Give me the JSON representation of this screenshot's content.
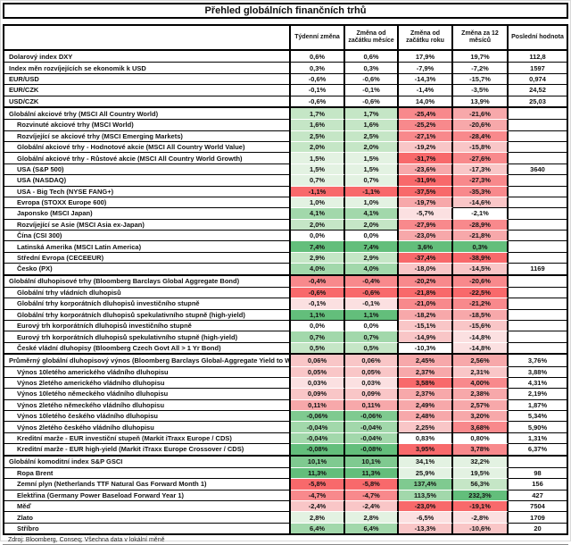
{
  "title": "Přehled globálních finančních trhů",
  "source_note": "Zdroj: Bloomberg, Conseq; Všechna data v lokální měně",
  "palette": {
    "w": "#FFFFFF",
    "g1": "#E3F2E2",
    "g2": "#C5E6C6",
    "g3": "#A2D8AB",
    "g4": "#7FCA90",
    "g5": "#63BE7B",
    "r1": "#FBE0E1",
    "r2": "#F9C6C7",
    "r3": "#F7A8AA",
    "r4": "#F8898C",
    "r5": "#F8696B"
  },
  "chart_data": {
    "type": "table",
    "title": "Přehled globálních finančních trhů",
    "columns": [
      "Týdenní změna",
      "Změna od začátku měsíce",
      "Změna od začátku roku",
      "Změna za 12 měsíců",
      "Poslední hodnota"
    ],
    "rows": [
      {
        "label": "Dolarový index DXY",
        "indent": false,
        "section_start": false,
        "values": [
          "0,6%",
          "0,6%",
          "17,9%",
          "19,7%",
          "112,8"
        ],
        "fills": [
          "w",
          "w",
          "w",
          "w",
          "w"
        ]
      },
      {
        "label": "Index měn rozvíjejících se ekonomik k USD",
        "indent": false,
        "section_start": false,
        "values": [
          "0,3%",
          "0,3%",
          "-7,9%",
          "-7,2%",
          "1597"
        ],
        "fills": [
          "w",
          "w",
          "w",
          "w",
          "w"
        ]
      },
      {
        "label": "EUR/USD",
        "indent": false,
        "section_start": false,
        "values": [
          "-0,6%",
          "-0,6%",
          "-14,3%",
          "-15,7%",
          "0,974"
        ],
        "fills": [
          "w",
          "w",
          "w",
          "w",
          "w"
        ]
      },
      {
        "label": "EUR/CZK",
        "indent": false,
        "section_start": false,
        "values": [
          "-0,1%",
          "-0,1%",
          "-1,4%",
          "-3,5%",
          "24,52"
        ],
        "fills": [
          "w",
          "w",
          "w",
          "w",
          "w"
        ]
      },
      {
        "label": "USD/CZK",
        "indent": false,
        "section_start": false,
        "values": [
          "-0,6%",
          "-0,6%",
          "14,0%",
          "13,9%",
          "25,03"
        ],
        "fills": [
          "w",
          "w",
          "w",
          "w",
          "w"
        ]
      },
      {
        "label": "Globální akciové trhy (MSCI All Country World)",
        "indent": false,
        "section_start": true,
        "values": [
          "1,7%",
          "1,7%",
          "-25,4%",
          "-21,6%",
          ""
        ],
        "fills": [
          "g2",
          "g2",
          "r4",
          "r3",
          "w"
        ]
      },
      {
        "label": "Rozvinuté akciové trhy (MSCI World)",
        "indent": true,
        "section_start": false,
        "values": [
          "1,6%",
          "1,6%",
          "-25,2%",
          "-20,6%",
          ""
        ],
        "fills": [
          "g2",
          "g2",
          "r4",
          "r3",
          "w"
        ]
      },
      {
        "label": "Rozvíjející se akciové trhy (MSCI Emerging Markets)",
        "indent": true,
        "section_start": false,
        "values": [
          "2,5%",
          "2,5%",
          "-27,1%",
          "-28,4%",
          ""
        ],
        "fills": [
          "g2",
          "g2",
          "r4",
          "r4",
          "w"
        ]
      },
      {
        "label": "Globální akciové trhy - Hodnotové akcie (MSCI All Country World Value)",
        "indent": true,
        "section_start": false,
        "values": [
          "2,0%",
          "2,0%",
          "-19,2%",
          "-15,8%",
          ""
        ],
        "fills": [
          "g2",
          "g2",
          "r2",
          "r2",
          "w"
        ]
      },
      {
        "label": "Globální akciové trhy - Růstové akcie (MSCI All Country World Growth)",
        "indent": true,
        "section_start": false,
        "values": [
          "1,5%",
          "1,5%",
          "-31,7%",
          "-27,6%",
          ""
        ],
        "fills": [
          "g1",
          "g1",
          "r5",
          "r4",
          "w"
        ]
      },
      {
        "label": "USA (S&P 500)",
        "indent": true,
        "section_start": false,
        "values": [
          "1,5%",
          "1,5%",
          "-23,6%",
          "-17,3%",
          "3640"
        ],
        "fills": [
          "g1",
          "g1",
          "r3",
          "r2",
          "w"
        ]
      },
      {
        "label": "USA (NASDAQ)",
        "indent": true,
        "section_start": false,
        "values": [
          "0,7%",
          "0,7%",
          "-31,9%",
          "-27,3%",
          ""
        ],
        "fills": [
          "g1",
          "g1",
          "r5",
          "r4",
          "w"
        ]
      },
      {
        "label": "USA - Big Tech (NYSE FANG+)",
        "indent": true,
        "section_start": false,
        "values": [
          "-1,1%",
          "-1,1%",
          "-37,5%",
          "-35,3%",
          ""
        ],
        "fills": [
          "r5",
          "r5",
          "r5",
          "r4",
          "w"
        ]
      },
      {
        "label": "Evropa (STOXX Europe 600)",
        "indent": true,
        "section_start": false,
        "values": [
          "1,0%",
          "1,0%",
          "-19,7%",
          "-14,6%",
          ""
        ],
        "fills": [
          "g1",
          "g1",
          "r3",
          "r2",
          "w"
        ]
      },
      {
        "label": "Japonsko (MSCI Japan)",
        "indent": true,
        "section_start": false,
        "values": [
          "4,1%",
          "4,1%",
          "-5,7%",
          "-2,1%",
          ""
        ],
        "fills": [
          "g3",
          "g3",
          "r1",
          "w",
          "w"
        ]
      },
      {
        "label": "Rozvíjející se Asie (MSCI Asia ex-Japan)",
        "indent": true,
        "section_start": false,
        "values": [
          "2,0%",
          "2,0%",
          "-27,9%",
          "-28,9%",
          ""
        ],
        "fills": [
          "g2",
          "g2",
          "r4",
          "r4",
          "w"
        ]
      },
      {
        "label": "Čína (CSI 300)",
        "indent": true,
        "section_start": false,
        "values": [
          "0,0%",
          "0,0%",
          "-23,0%",
          "-21,8%",
          ""
        ],
        "fills": [
          "w",
          "w",
          "r3",
          "r3",
          "w"
        ]
      },
      {
        "label": "Latinská Amerika (MSCI Latin America)",
        "indent": true,
        "section_start": false,
        "values": [
          "7,4%",
          "7,4%",
          "3,6%",
          "0,3%",
          ""
        ],
        "fills": [
          "g5",
          "g5",
          "g5",
          "g5",
          "w"
        ]
      },
      {
        "label": "Střední Evropa (CECEEUR)",
        "indent": true,
        "section_start": false,
        "values": [
          "2,9%",
          "2,9%",
          "-37,4%",
          "-38,9%",
          ""
        ],
        "fills": [
          "g2",
          "g2",
          "r5",
          "r5",
          "w"
        ]
      },
      {
        "label": "Česko (PX)",
        "indent": true,
        "section_start": false,
        "values": [
          "4,0%",
          "4,0%",
          "-18,0%",
          "-14,5%",
          "1169"
        ],
        "fills": [
          "g3",
          "g3",
          "r2",
          "r2",
          "w"
        ]
      },
      {
        "label": "Globální dluhopisové trhy (Bloomberg Barclays Global Aggregate Bond)",
        "indent": false,
        "section_start": true,
        "values": [
          "-0,4%",
          "-0,4%",
          "-20,2%",
          "-20,6%",
          ""
        ],
        "fills": [
          "r4",
          "r4",
          "r4",
          "r4",
          "w"
        ]
      },
      {
        "label": "Globální trhy vládních dluhopisů",
        "indent": true,
        "section_start": false,
        "values": [
          "-0,6%",
          "-0,6%",
          "-21,8%",
          "-22,5%",
          ""
        ],
        "fills": [
          "r5",
          "r5",
          "r5",
          "r5",
          "w"
        ]
      },
      {
        "label": "Globální trhy korporátních dluhopisů investičního stupně",
        "indent": true,
        "section_start": false,
        "values": [
          "-0,1%",
          "-0,1%",
          "-21,0%",
          "-21,2%",
          ""
        ],
        "fills": [
          "r1",
          "r1",
          "r4",
          "r4",
          "w"
        ]
      },
      {
        "label": "Globální trhy korporátních dluhopisů spekulativního stupně (high-yield)",
        "indent": true,
        "section_start": false,
        "values": [
          "1,1%",
          "1,1%",
          "-18,2%",
          "-18,5%",
          ""
        ],
        "fills": [
          "g5",
          "g5",
          "r3",
          "r3",
          "w"
        ]
      },
      {
        "label": "Eurový trh korporátních dluhopisů investičního stupně",
        "indent": true,
        "section_start": false,
        "values": [
          "0,0%",
          "0,0%",
          "-15,1%",
          "-15,6%",
          ""
        ],
        "fills": [
          "w",
          "w",
          "r2",
          "r2",
          "w"
        ]
      },
      {
        "label": "Eurový trh korporátních dluhopisů spekulativního stupně (high-yield)",
        "indent": true,
        "section_start": false,
        "values": [
          "0,7%",
          "0,7%",
          "-14,9%",
          "-14,8%",
          ""
        ],
        "fills": [
          "g3",
          "g3",
          "r2",
          "r1",
          "w"
        ]
      },
      {
        "label": "České vládní dluhopisy (Bloomberg Czech Govt All > 1 Yr Bond)",
        "indent": true,
        "section_start": false,
        "values": [
          "0,5%",
          "0,5%",
          "-10,3%",
          "-14,8%",
          ""
        ],
        "fills": [
          "g2",
          "g2",
          "w",
          "r1",
          "w"
        ]
      },
      {
        "label": "Průměrný globální dluhopisový výnos (Bloomberg Barclays Global-Aggregate Yield to Worst)",
        "indent": false,
        "section_start": true,
        "values": [
          "0,06%",
          "0,06%",
          "2,45%",
          "2,56%",
          "3,76%"
        ],
        "fills": [
          "r2",
          "r2",
          "r3",
          "r3",
          "w"
        ]
      },
      {
        "label": "Výnos 10letého amerického vládního dluhopisu",
        "indent": true,
        "section_start": false,
        "values": [
          "0,05%",
          "0,05%",
          "2,37%",
          "2,31%",
          "3,88%"
        ],
        "fills": [
          "r2",
          "r2",
          "r3",
          "r2",
          "w"
        ]
      },
      {
        "label": "Výnos 2letého amerického vládního dluhopisu",
        "indent": true,
        "section_start": false,
        "values": [
          "0,03%",
          "0,03%",
          "3,58%",
          "4,00%",
          "4,31%"
        ],
        "fills": [
          "r1",
          "r1",
          "r5",
          "r4",
          "w"
        ]
      },
      {
        "label": "Výnos 10letého německého vládního dluhopisu",
        "indent": true,
        "section_start": false,
        "values": [
          "0,09%",
          "0,09%",
          "2,37%",
          "2,38%",
          "2,19%"
        ],
        "fills": [
          "r2",
          "r2",
          "r3",
          "r3",
          "w"
        ]
      },
      {
        "label": "Výnos 2letého německého vládního dluhopisu",
        "indent": true,
        "section_start": false,
        "values": [
          "0,11%",
          "0,11%",
          "2,49%",
          "2,57%",
          "1,87%"
        ],
        "fills": [
          "r3",
          "r3",
          "r3",
          "r3",
          "w"
        ]
      },
      {
        "label": "Výnos 10letého českého vládního dluhopisu",
        "indent": true,
        "section_start": false,
        "values": [
          "-0,06%",
          "-0,06%",
          "2,48%",
          "3,20%",
          "5,34%"
        ],
        "fills": [
          "g4",
          "g4",
          "r3",
          "r3",
          "w"
        ]
      },
      {
        "label": "Výnos 2letého českého vládního dluhopisu",
        "indent": true,
        "section_start": false,
        "values": [
          "-0,04%",
          "-0,04%",
          "2,25%",
          "3,68%",
          "5,90%"
        ],
        "fills": [
          "g3",
          "g3",
          "r2",
          "r4",
          "w"
        ]
      },
      {
        "label": "Kreditní marže - EUR investiční stupeň (Markit iTraxx Europe / CDS)",
        "indent": true,
        "section_start": false,
        "values": [
          "-0,04%",
          "-0,04%",
          "0,83%",
          "0,80%",
          "1,31%"
        ],
        "fills": [
          "g3",
          "g3",
          "w",
          "w",
          "w"
        ]
      },
      {
        "label": "Kreditní marže - EUR high-yield (Markit iTraxx Europe Crossover / CDS)",
        "indent": true,
        "section_start": false,
        "values": [
          "-0,08%",
          "-0,08%",
          "3,95%",
          "3,78%",
          "6,37%"
        ],
        "fills": [
          "g5",
          "g5",
          "r5",
          "r4",
          "w"
        ]
      },
      {
        "label": "Globální komoditní index S&P GSCI",
        "indent": false,
        "section_start": true,
        "values": [
          "10,1%",
          "10,1%",
          "34,1%",
          "32,2%",
          ""
        ],
        "fills": [
          "g4",
          "g4",
          "g1",
          "g1",
          "w"
        ]
      },
      {
        "label": "Ropa Brent",
        "indent": true,
        "section_start": false,
        "values": [
          "11,3%",
          "11,3%",
          "25,9%",
          "19,5%",
          "98"
        ],
        "fills": [
          "g5",
          "g5",
          "g1",
          "g1",
          "w"
        ]
      },
      {
        "label": "Zemní plyn (Netherlands TTF Natural Gas Forward Month 1)",
        "indent": true,
        "section_start": false,
        "values": [
          "-5,8%",
          "-5,8%",
          "137,4%",
          "56,3%",
          "156"
        ],
        "fills": [
          "r5",
          "r5",
          "g4",
          "g2",
          "w"
        ]
      },
      {
        "label": "Elektřina (Germany Power Baseload Forward Year 1)",
        "indent": true,
        "section_start": false,
        "values": [
          "-4,7%",
          "-4,7%",
          "113,5%",
          "232,3%",
          "427"
        ],
        "fills": [
          "r4",
          "r4",
          "g3",
          "g5",
          "w"
        ]
      },
      {
        "label": "Měď",
        "indent": true,
        "section_start": false,
        "values": [
          "-2,4%",
          "-2,4%",
          "-23,0%",
          "-19,1%",
          "7504"
        ],
        "fills": [
          "r2",
          "r2",
          "r5",
          "r5",
          "w"
        ]
      },
      {
        "label": "Zlato",
        "indent": true,
        "section_start": false,
        "values": [
          "2,8%",
          "2,8%",
          "-6,5%",
          "-2,8%",
          "1709"
        ],
        "fills": [
          "g1",
          "g1",
          "r1",
          "r1",
          "w"
        ]
      },
      {
        "label": "Stříbro",
        "indent": true,
        "section_start": false,
        "values": [
          "6,4%",
          "6,4%",
          "-13,3%",
          "-10,6%",
          "20"
        ],
        "fills": [
          "g3",
          "g3",
          "r2",
          "r2",
          "w"
        ]
      }
    ]
  }
}
